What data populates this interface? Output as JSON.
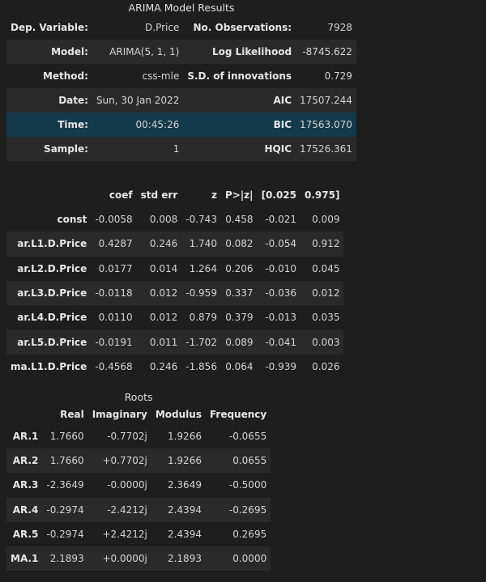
{
  "summary": {
    "caption": "ARIMA Model Results",
    "rows": [
      {
        "l1": "Dep. Variable:",
        "v1": "D.Price",
        "l2": "No. Observations:",
        "v2": "7928"
      },
      {
        "l1": "Model:",
        "v1": "ARIMA(5, 1, 1)",
        "l2": "Log Likelihood",
        "v2": "-8745.622"
      },
      {
        "l1": "Method:",
        "v1": "css-mle",
        "l2": "S.D. of innovations",
        "v2": "0.729"
      },
      {
        "l1": "Date:",
        "v1": "Sun, 30 Jan 2022",
        "l2": "AIC",
        "v2": "17507.244"
      },
      {
        "l1": "Time:",
        "v1": "00:45:26",
        "l2": "BIC",
        "v2": "17563.070"
      },
      {
        "l1": "Sample:",
        "v1": "1",
        "l2": "HQIC",
        "v2": "17526.361"
      }
    ]
  },
  "coef": {
    "headers": [
      "",
      "coef",
      "std err",
      "z",
      "P>|z|",
      "[0.025",
      "0.975]"
    ],
    "rows": [
      [
        "const",
        "-0.0058",
        "0.008",
        "-0.743",
        "0.458",
        "-0.021",
        "0.009"
      ],
      [
        "ar.L1.D.Price",
        "0.4287",
        "0.246",
        "1.740",
        "0.082",
        "-0.054",
        "0.912"
      ],
      [
        "ar.L2.D.Price",
        "0.0177",
        "0.014",
        "1.264",
        "0.206",
        "-0.010",
        "0.045"
      ],
      [
        "ar.L3.D.Price",
        "-0.0118",
        "0.012",
        "-0.959",
        "0.337",
        "-0.036",
        "0.012"
      ],
      [
        "ar.L4.D.Price",
        "0.0110",
        "0.012",
        "0.879",
        "0.379",
        "-0.013",
        "0.035"
      ],
      [
        "ar.L5.D.Price",
        "-0.0191",
        "0.011",
        "-1.702",
        "0.089",
        "-0.041",
        "0.003"
      ],
      [
        "ma.L1.D.Price",
        "-0.4568",
        "0.246",
        "-1.856",
        "0.064",
        "-0.939",
        "0.026"
      ]
    ]
  },
  "roots": {
    "caption": "Roots",
    "headers": [
      "",
      "Real",
      "Imaginary",
      "Modulus",
      "Frequency"
    ],
    "rows": [
      [
        "AR.1",
        "1.7660",
        "-0.7702j",
        "1.9266",
        "-0.0655"
      ],
      [
        "AR.2",
        "1.7660",
        "+0.7702j",
        "1.9266",
        "0.0655"
      ],
      [
        "AR.3",
        "-2.3649",
        "-0.0000j",
        "2.3649",
        "-0.5000"
      ],
      [
        "AR.4",
        "-0.2974",
        "-2.4212j",
        "2.4394",
        "-0.2695"
      ],
      [
        "AR.5",
        "-0.2974",
        "+2.4212j",
        "2.4394",
        "0.2695"
      ],
      [
        "MA.1",
        "2.1893",
        "+0.0000j",
        "2.1893",
        "0.0000"
      ]
    ]
  }
}
